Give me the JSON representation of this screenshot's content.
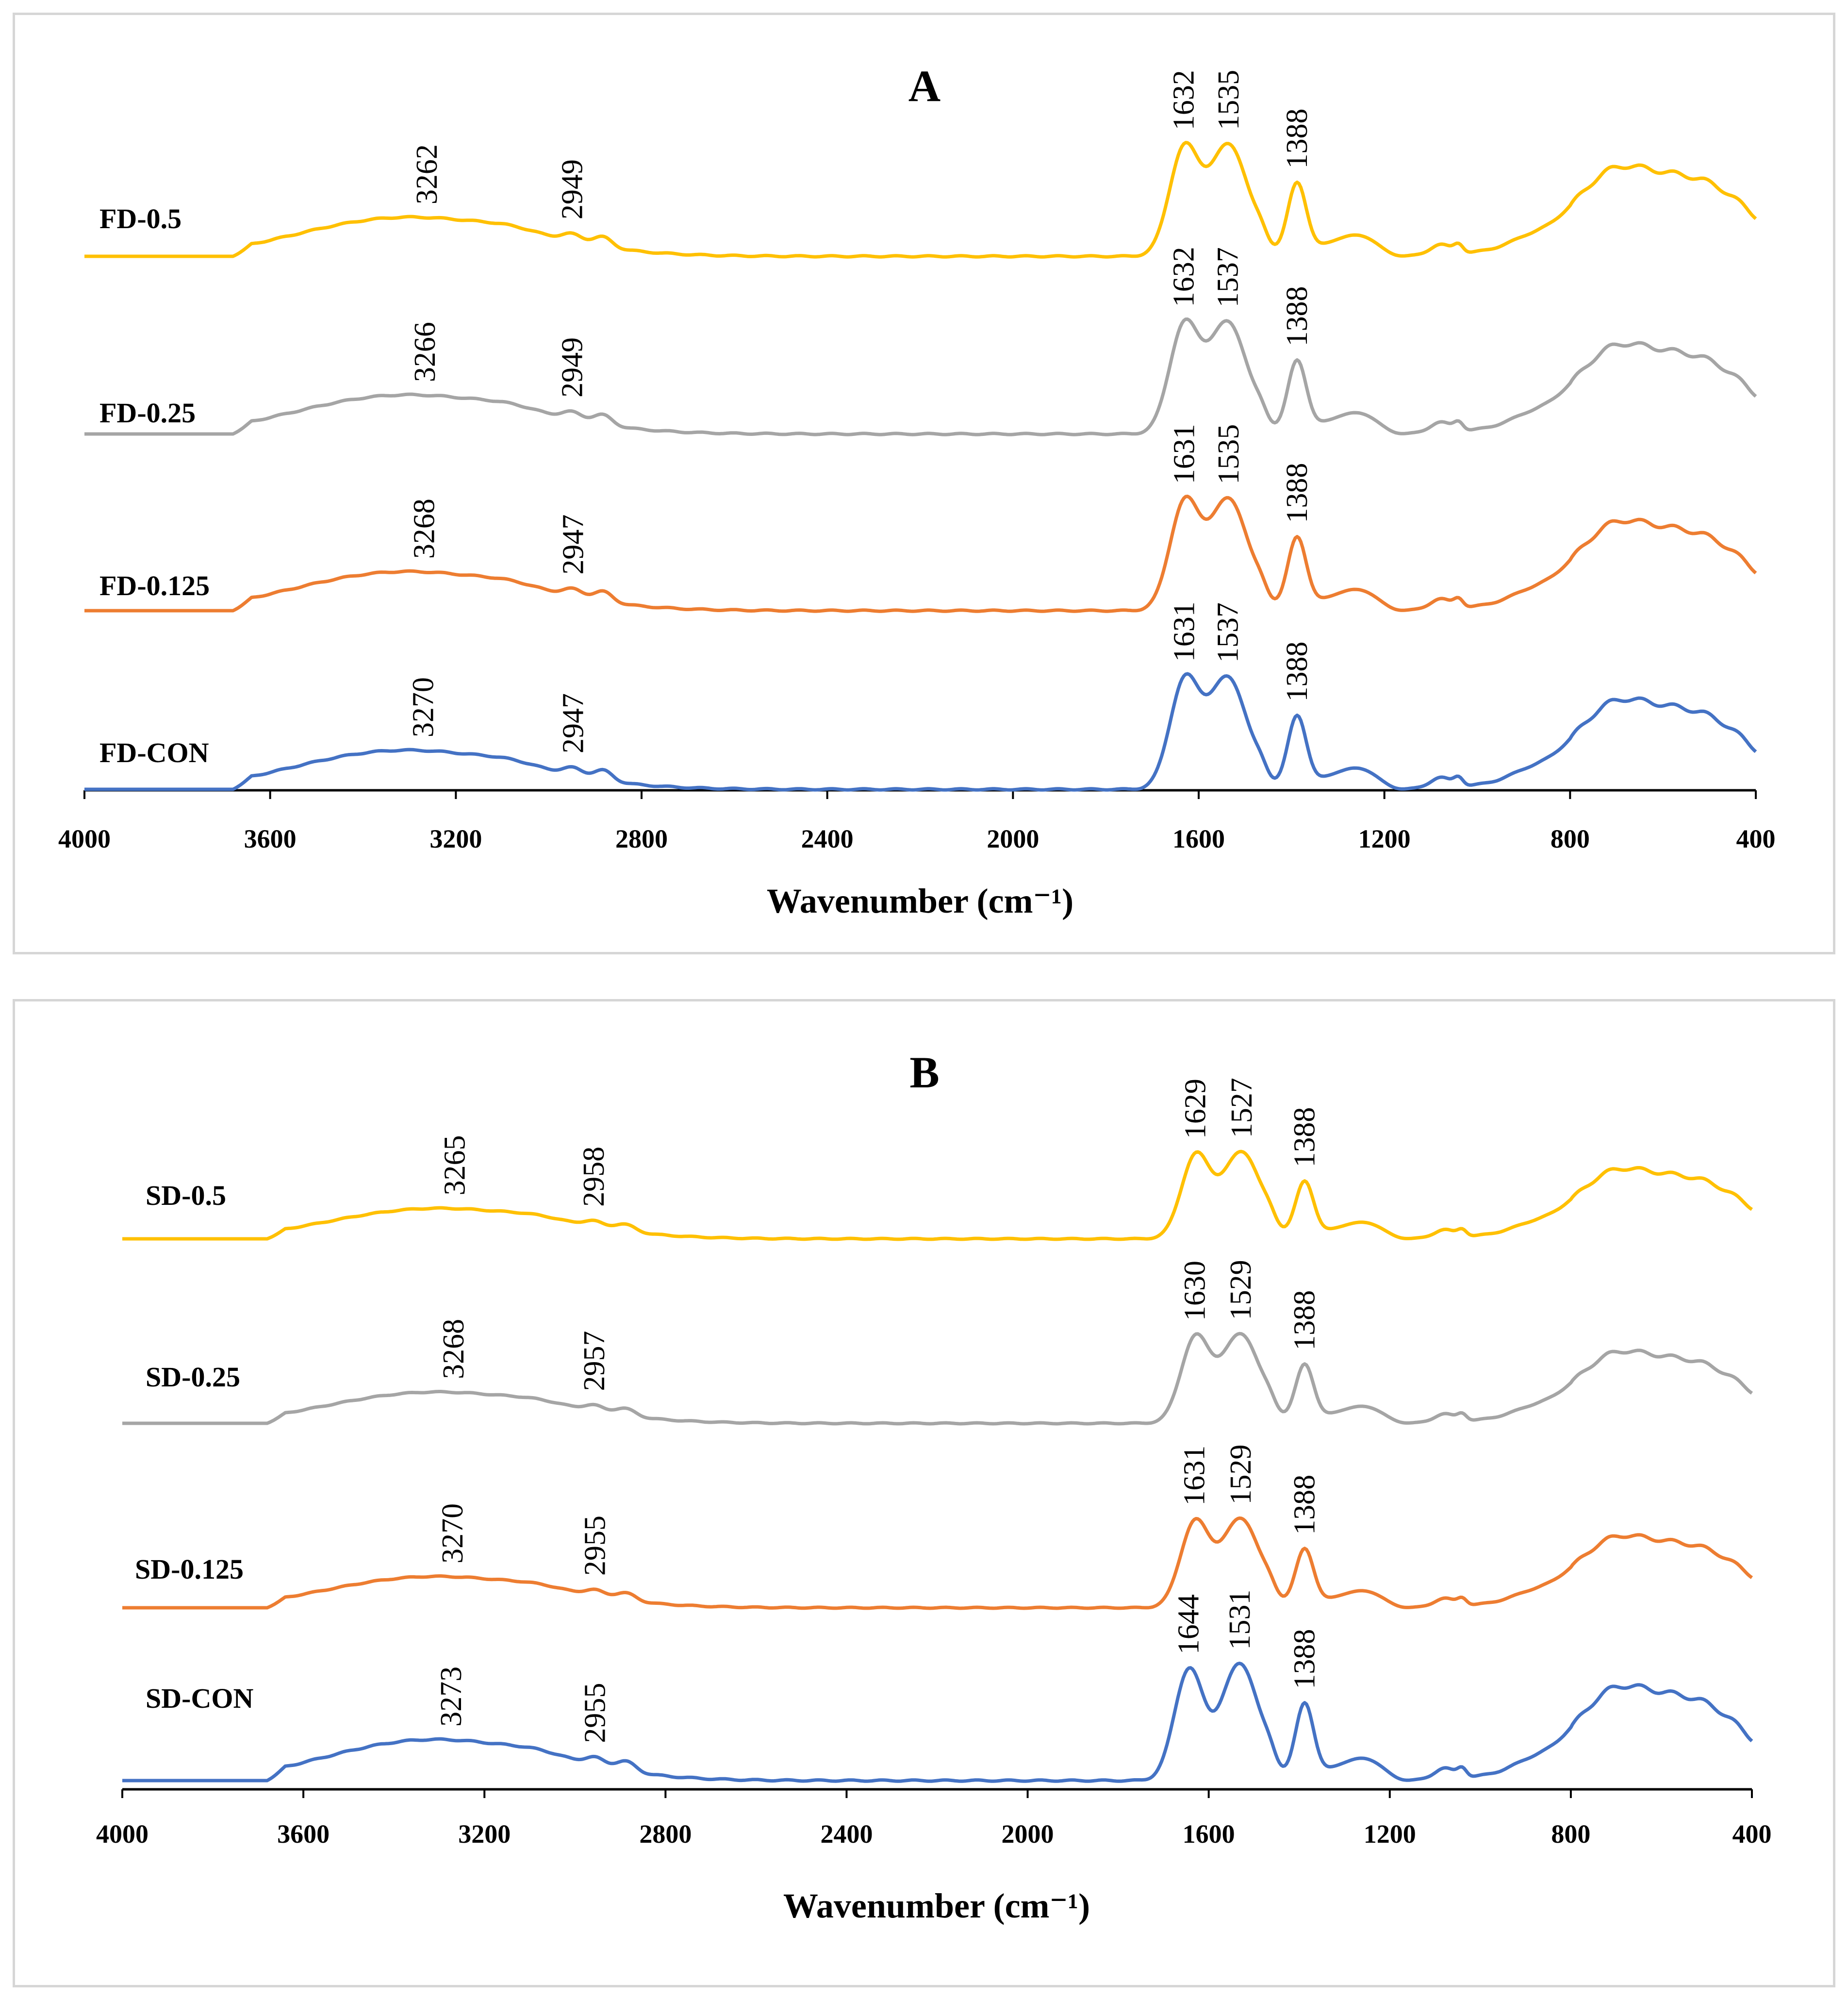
{
  "colors": {
    "yellow": "#FFC000",
    "gray": "#A5A5A5",
    "orange": "#ED7D31",
    "blue": "#4472C4",
    "axis": "#000000"
  },
  "chart_data": [
    {
      "type": "line",
      "panel": "A",
      "title": "A",
      "xlabel": "Wavenumber (cm⁻¹)",
      "xlim": [
        4000,
        400
      ],
      "xticks": [
        "4000",
        "3600",
        "3200",
        "2800",
        "2400",
        "2000",
        "1600",
        "1200",
        "800",
        "400"
      ],
      "yaxis": "offset traces, no y scale",
      "series": [
        {
          "name": "FD-0.5",
          "color_key": "yellow",
          "peaks": [
            3262,
            2949,
            1632,
            1535,
            1388
          ],
          "peak_labels": [
            "3262",
            "2949",
            "1632",
            "1535",
            "1388"
          ]
        },
        {
          "name": "FD-0.25",
          "color_key": "gray",
          "peaks": [
            3266,
            2949,
            1632,
            1537,
            1388
          ],
          "peak_labels": [
            "3266",
            "2949",
            "1632",
            "1537",
            "1388"
          ]
        },
        {
          "name": "FD-0.125",
          "color_key": "orange",
          "peaks": [
            3268,
            2947,
            1631,
            1535,
            1388
          ],
          "peak_labels": [
            "3268",
            "2947",
            "1631",
            "1535",
            "1388"
          ]
        },
        {
          "name": "FD-CON",
          "color_key": "blue",
          "peaks": [
            3270,
            2947,
            1631,
            1537,
            1388
          ],
          "peak_labels": [
            "3270",
            "2947",
            "1631",
            "1537",
            "1388"
          ]
        }
      ]
    },
    {
      "type": "line",
      "panel": "B",
      "title": "B",
      "xlabel": "Wavenumber (cm⁻¹)",
      "xlim": [
        4000,
        400
      ],
      "xticks": [
        "4000",
        "3600",
        "3200",
        "2800",
        "2400",
        "2000",
        "1600",
        "1200",
        "800",
        "400"
      ],
      "yaxis": "offset traces, no y scale",
      "series": [
        {
          "name": "SD-0.5",
          "color_key": "yellow",
          "peaks": [
            3265,
            2958,
            1629,
            1527,
            1388
          ],
          "peak_labels": [
            "3265",
            "2958",
            "1629",
            "1527",
            "1388"
          ]
        },
        {
          "name": "SD-0.25",
          "color_key": "gray",
          "peaks": [
            3268,
            2957,
            1630,
            1529,
            1388
          ],
          "peak_labels": [
            "3268",
            "2957",
            "1630",
            "1529",
            "1388"
          ]
        },
        {
          "name": "SD-0.125",
          "color_key": "orange",
          "peaks": [
            3270,
            2955,
            1631,
            1529,
            1388
          ],
          "peak_labels": [
            "3270",
            "2955",
            "1631",
            "1529",
            "1388"
          ]
        },
        {
          "name": "SD-CON",
          "color_key": "blue",
          "peaks": [
            3273,
            2955,
            1644,
            1531,
            1388
          ],
          "peak_labels": [
            "3273",
            "2955",
            "1644",
            "1531",
            "1388"
          ]
        }
      ]
    }
  ]
}
